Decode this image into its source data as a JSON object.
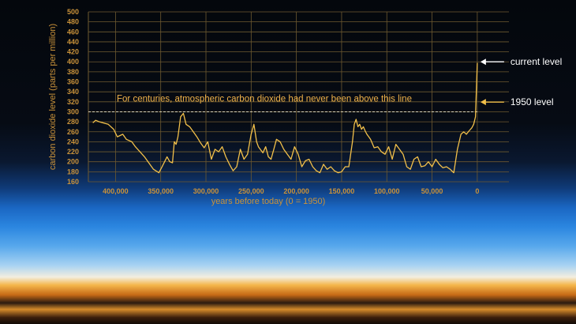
{
  "chart_data": {
    "type": "line",
    "xlabel": "years before today (0 = 1950)",
    "ylabel": "carbon dioxide level (parts per million)",
    "xlim": [
      430000,
      -35000
    ],
    "ylim": [
      160,
      500
    ],
    "yticks": [
      160,
      180,
      200,
      220,
      240,
      260,
      280,
      300,
      320,
      340,
      360,
      380,
      400,
      420,
      440,
      460,
      480,
      500
    ],
    "xticks": [
      400000,
      350000,
      300000,
      250000,
      200000,
      150000,
      100000,
      50000,
      0
    ],
    "xtick_labels": [
      "400,000",
      "350,000",
      "300,000",
      "250,000",
      "200,000",
      "150,000",
      "100,000",
      "50,000",
      "0"
    ],
    "grid": true,
    "series": [
      {
        "x": [
          425000,
          422000,
          418000,
          412000,
          408000,
          402000,
          398000,
          392000,
          388000,
          382000,
          378000,
          372000,
          368000,
          362000,
          358000,
          352000,
          348000,
          343000,
          340000,
          337000,
          335000,
          333000,
          331000,
          328000,
          325000,
          322000,
          318000,
          314000,
          310000,
          306000,
          302000,
          298000,
          294000,
          290000,
          286000,
          282000,
          278000,
          274000,
          270000,
          266000,
          262000,
          258000,
          254000,
          250000,
          247000,
          244000,
          242000,
          240000,
          237000,
          234000,
          231000,
          228000,
          225000,
          222000,
          218000,
          214000,
          210000,
          206000,
          202000,
          198000,
          194000,
          190000,
          186000,
          182000,
          178000,
          174000,
          170000,
          166000,
          162000,
          158000,
          154000,
          150000,
          146000,
          142000,
          138000,
          136000,
          134000,
          132000,
          130000,
          128000,
          126000,
          124000,
          122000,
          118000,
          114000,
          110000,
          106000,
          102000,
          98000,
          94000,
          90000,
          86000,
          82000,
          78000,
          74000,
          70000,
          66000,
          62000,
          58000,
          54000,
          50000,
          46000,
          42000,
          38000,
          34000,
          30000,
          26000,
          22000,
          18000,
          15000,
          12000,
          9000,
          6000,
          4000,
          2000,
          0
        ],
        "y": [
          278,
          283,
          280,
          277,
          275,
          265,
          250,
          255,
          245,
          240,
          230,
          218,
          210,
          195,
          185,
          178,
          192,
          210,
          200,
          198,
          240,
          235,
          250,
          290,
          297,
          275,
          270,
          260,
          250,
          238,
          228,
          240,
          205,
          225,
          220,
          230,
          210,
          195,
          182,
          190,
          225,
          205,
          215,
          255,
          275,
          240,
          230,
          225,
          218,
          230,
          210,
          205,
          225,
          245,
          240,
          225,
          215,
          205,
          230,
          215,
          190,
          202,
          205,
          190,
          182,
          178,
          195,
          185,
          190,
          182,
          178,
          180,
          190,
          190,
          240,
          275,
          285,
          270,
          275,
          265,
          270,
          262,
          255,
          245,
          228,
          230,
          220,
          215,
          230,
          205,
          235,
          225,
          215,
          190,
          185,
          205,
          210,
          190,
          192,
          200,
          190,
          205,
          195,
          188,
          190,
          185,
          178,
          225,
          255,
          260,
          255,
          262,
          268,
          275,
          290,
          398
        ]
      }
    ],
    "reference_line": {
      "y": 300,
      "label": "For centuries, atmospheric carbon dioxide had never been above this line"
    },
    "annotations": [
      {
        "label": "current level",
        "x": 0,
        "y": 400
      },
      {
        "label": "1950 level",
        "x": 0,
        "y": 310
      }
    ],
    "colors": {
      "line": "#f2c04a",
      "axis": "#c9923a",
      "grid": "#6e5a30",
      "callout": "#ffffff"
    }
  }
}
